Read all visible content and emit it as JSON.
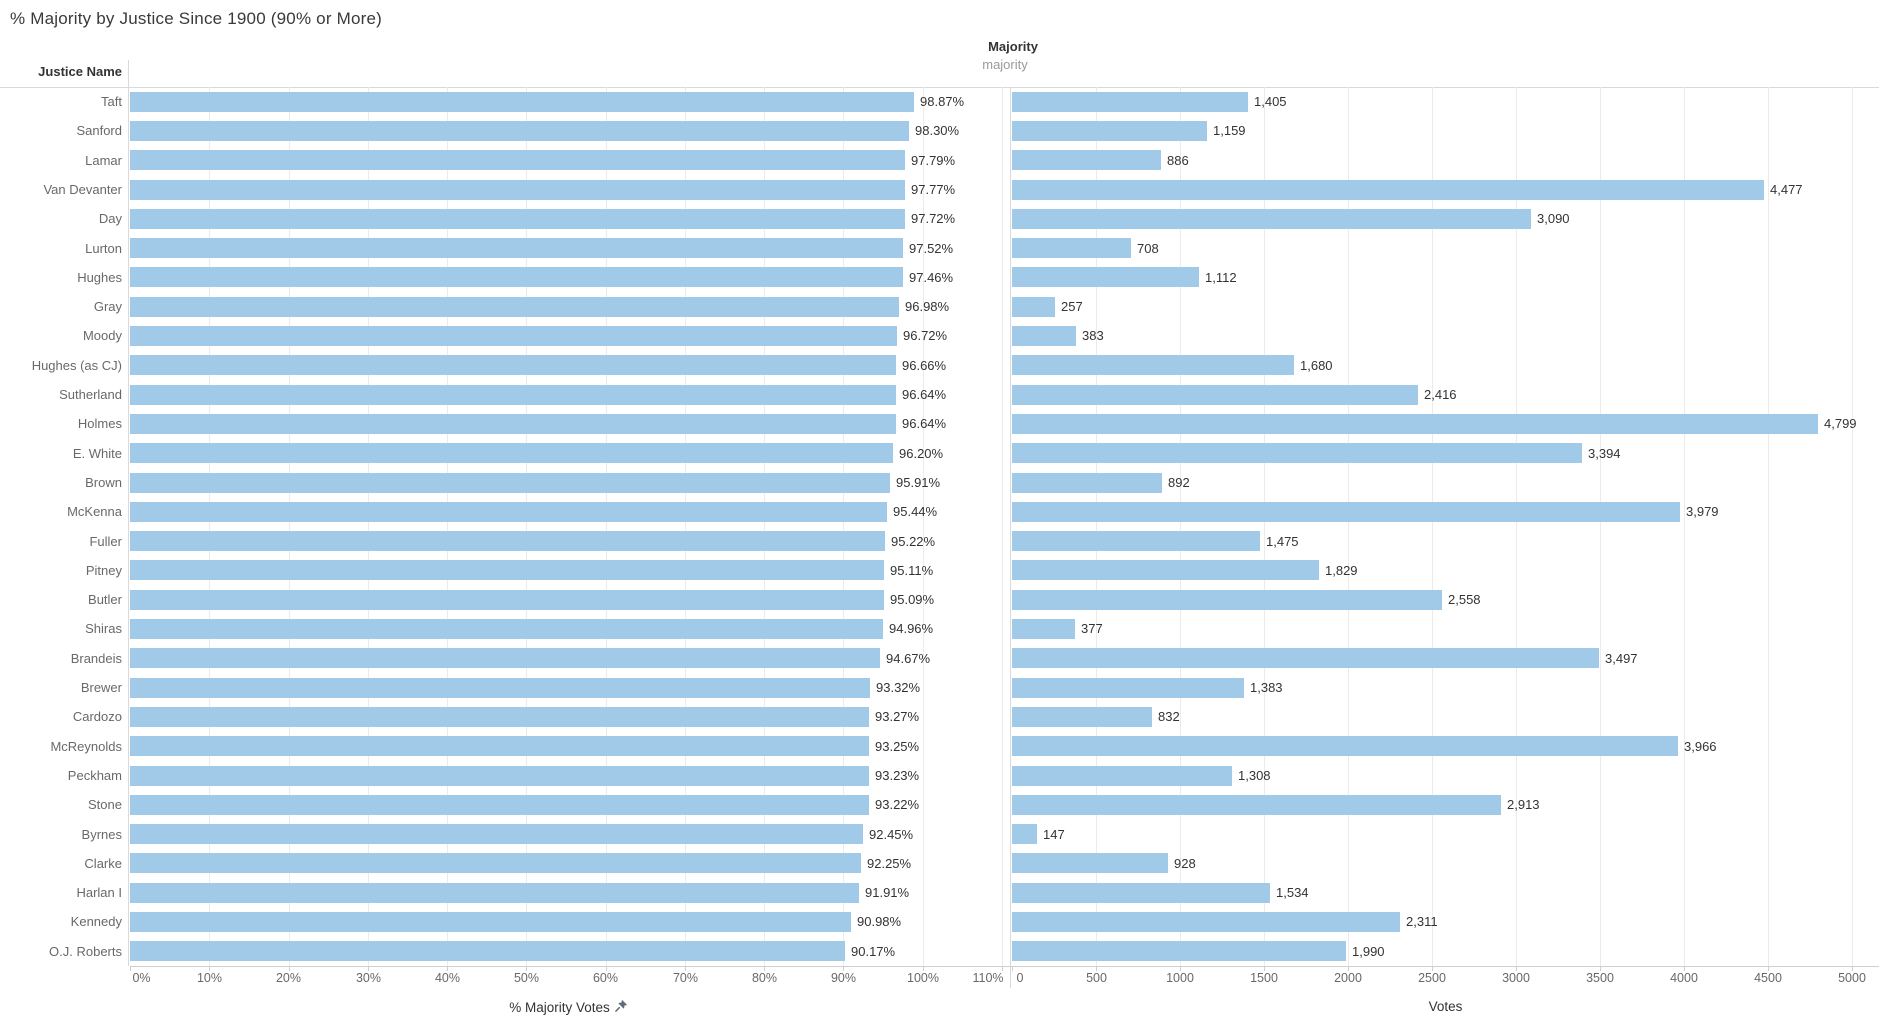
{
  "title": "% Majority by Justice Since 1900 (90% or More)",
  "row_header": "Justice Name",
  "col_header": {
    "primary": "Majority",
    "secondary": "majority"
  },
  "left_axis": {
    "title": "% Majority Votes",
    "sort_icon": "pin-icon",
    "ticks": [
      "0%",
      "10%",
      "20%",
      "30%",
      "40%",
      "50%",
      "60%",
      "70%",
      "80%",
      "90%",
      "100%",
      "110%"
    ],
    "tick_values": [
      0,
      10,
      20,
      30,
      40,
      50,
      60,
      70,
      80,
      90,
      100,
      110
    ],
    "max": 110
  },
  "right_axis": {
    "title": "Votes",
    "ticks": [
      "0",
      "500",
      "1000",
      "1500",
      "2000",
      "2500",
      "3000",
      "3500",
      "4000",
      "4500",
      "5000"
    ],
    "tick_values": [
      0,
      500,
      1000,
      1500,
      2000,
      2500,
      3000,
      3500,
      4000,
      4500,
      5000
    ],
    "max": 5000
  },
  "colors": {
    "bar": "#a1c9e8",
    "gridline": "#ebebeb",
    "axis_line": "#cfcfcf",
    "separator": "#d9d9d9",
    "title_text": "#3a3a3a",
    "header_text": "#333333",
    "name_text": "#696969",
    "value_text": "#333333",
    "tick_text": "#686868",
    "subheader_text": "#9a9a9a"
  },
  "chart_data": {
    "type": "bar",
    "orientation": "horizontal",
    "title": "% Majority by Justice Since 1900 (90% or More)",
    "grid": true,
    "legend": "none",
    "categories": [
      "Taft",
      "Sanford",
      "Lamar",
      "Van Devanter",
      "Day",
      "Lurton",
      "Hughes",
      "Gray",
      "Moody",
      "Hughes (as CJ)",
      "Sutherland",
      "Holmes",
      "E. White",
      "Brown",
      "McKenna",
      "Fuller",
      "Pitney",
      "Butler",
      "Shiras",
      "Brandeis",
      "Brewer",
      "Cardozo",
      "McReynolds",
      "Peckham",
      "Stone",
      "Byrnes",
      "Clarke",
      "Harlan I",
      "Kennedy",
      "O.J. Roberts"
    ],
    "series": [
      {
        "name": "% Majority Votes",
        "xlabel": "% Majority Votes",
        "xlim": [
          0,
          110
        ],
        "unit": "%",
        "values": [
          98.87,
          98.3,
          97.79,
          97.77,
          97.72,
          97.52,
          97.46,
          96.98,
          96.72,
          96.66,
          96.64,
          96.64,
          96.2,
          95.91,
          95.44,
          95.22,
          95.11,
          95.09,
          94.96,
          94.67,
          93.32,
          93.27,
          93.25,
          93.23,
          93.22,
          92.45,
          92.25,
          91.91,
          90.98,
          90.17
        ],
        "labels": [
          "98.87%",
          "98.30%",
          "97.79%",
          "97.77%",
          "97.72%",
          "97.52%",
          "97.46%",
          "96.98%",
          "96.72%",
          "96.66%",
          "96.64%",
          "96.64%",
          "96.20%",
          "95.91%",
          "95.44%",
          "95.22%",
          "95.11%",
          "95.09%",
          "94.96%",
          "94.67%",
          "93.32%",
          "93.27%",
          "93.25%",
          "93.23%",
          "93.22%",
          "92.45%",
          "92.25%",
          "91.91%",
          "90.98%",
          "90.17%"
        ]
      },
      {
        "name": "Votes",
        "xlabel": "Votes",
        "xlim": [
          0,
          5000
        ],
        "unit": "count",
        "values": [
          1405,
          1159,
          886,
          4477,
          3090,
          708,
          1112,
          257,
          383,
          1680,
          2416,
          4799,
          3394,
          892,
          3979,
          1475,
          1829,
          2558,
          377,
          3497,
          1383,
          832,
          3966,
          1308,
          2913,
          147,
          928,
          1534,
          2311,
          1990
        ],
        "labels": [
          "1,405",
          "1,159",
          "886",
          "4,477",
          "3,090",
          "708",
          "1,112",
          "257",
          "383",
          "1,680",
          "2,416",
          "4,799",
          "3,394",
          "892",
          "3,979",
          "1,475",
          "1,829",
          "2,558",
          "377",
          "3,497",
          "1,383",
          "832",
          "3,966",
          "1,308",
          "2,913",
          "147",
          "928",
          "1,534",
          "2,311",
          "1,990"
        ]
      }
    ]
  }
}
